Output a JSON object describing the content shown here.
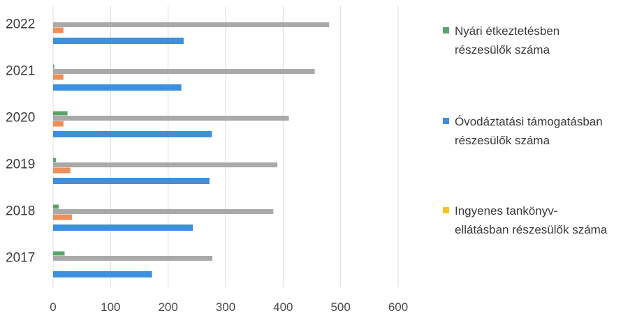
{
  "chart_data": {
    "type": "bar",
    "orientation": "horizontal",
    "title": "",
    "xlabel": "",
    "ylabel": "",
    "categories": [
      "2017",
      "2018",
      "2019",
      "2020",
      "2021",
      "2022"
    ],
    "xlim": [
      0,
      600
    ],
    "xticks": [
      "0",
      "100",
      "200",
      "300",
      "400",
      "500",
      "600"
    ],
    "grid": true,
    "legend_position": "right",
    "series": [
      {
        "name_lines": [
          "Nyári étkeztetésben",
          "részesülők száma"
        ],
        "color": "#5aa469",
        "values": [
          20,
          10,
          5,
          25,
          2,
          0
        ]
      },
      {
        "name_lines": [
          "Óvodáztatási támogatásban",
          "részesülők száma"
        ],
        "color": "#3d8fe0",
        "values": [
          172,
          243,
          272,
          276,
          223,
          227
        ]
      },
      {
        "name_lines": [
          "Ingyenes tankönyv-",
          "ellátásban részesülők száma"
        ],
        "color": "#f5c518",
        "values": [
          0,
          0,
          0,
          0,
          0,
          0
        ]
      },
      {
        "name_lines": [],
        "color": "#ee8f5a",
        "values": [
          0,
          33,
          30,
          18,
          18,
          18
        ]
      },
      {
        "name_lines": [],
        "color": "#a9a9a9",
        "values": [
          277,
          383,
          390,
          410,
          455,
          480
        ]
      }
    ]
  }
}
